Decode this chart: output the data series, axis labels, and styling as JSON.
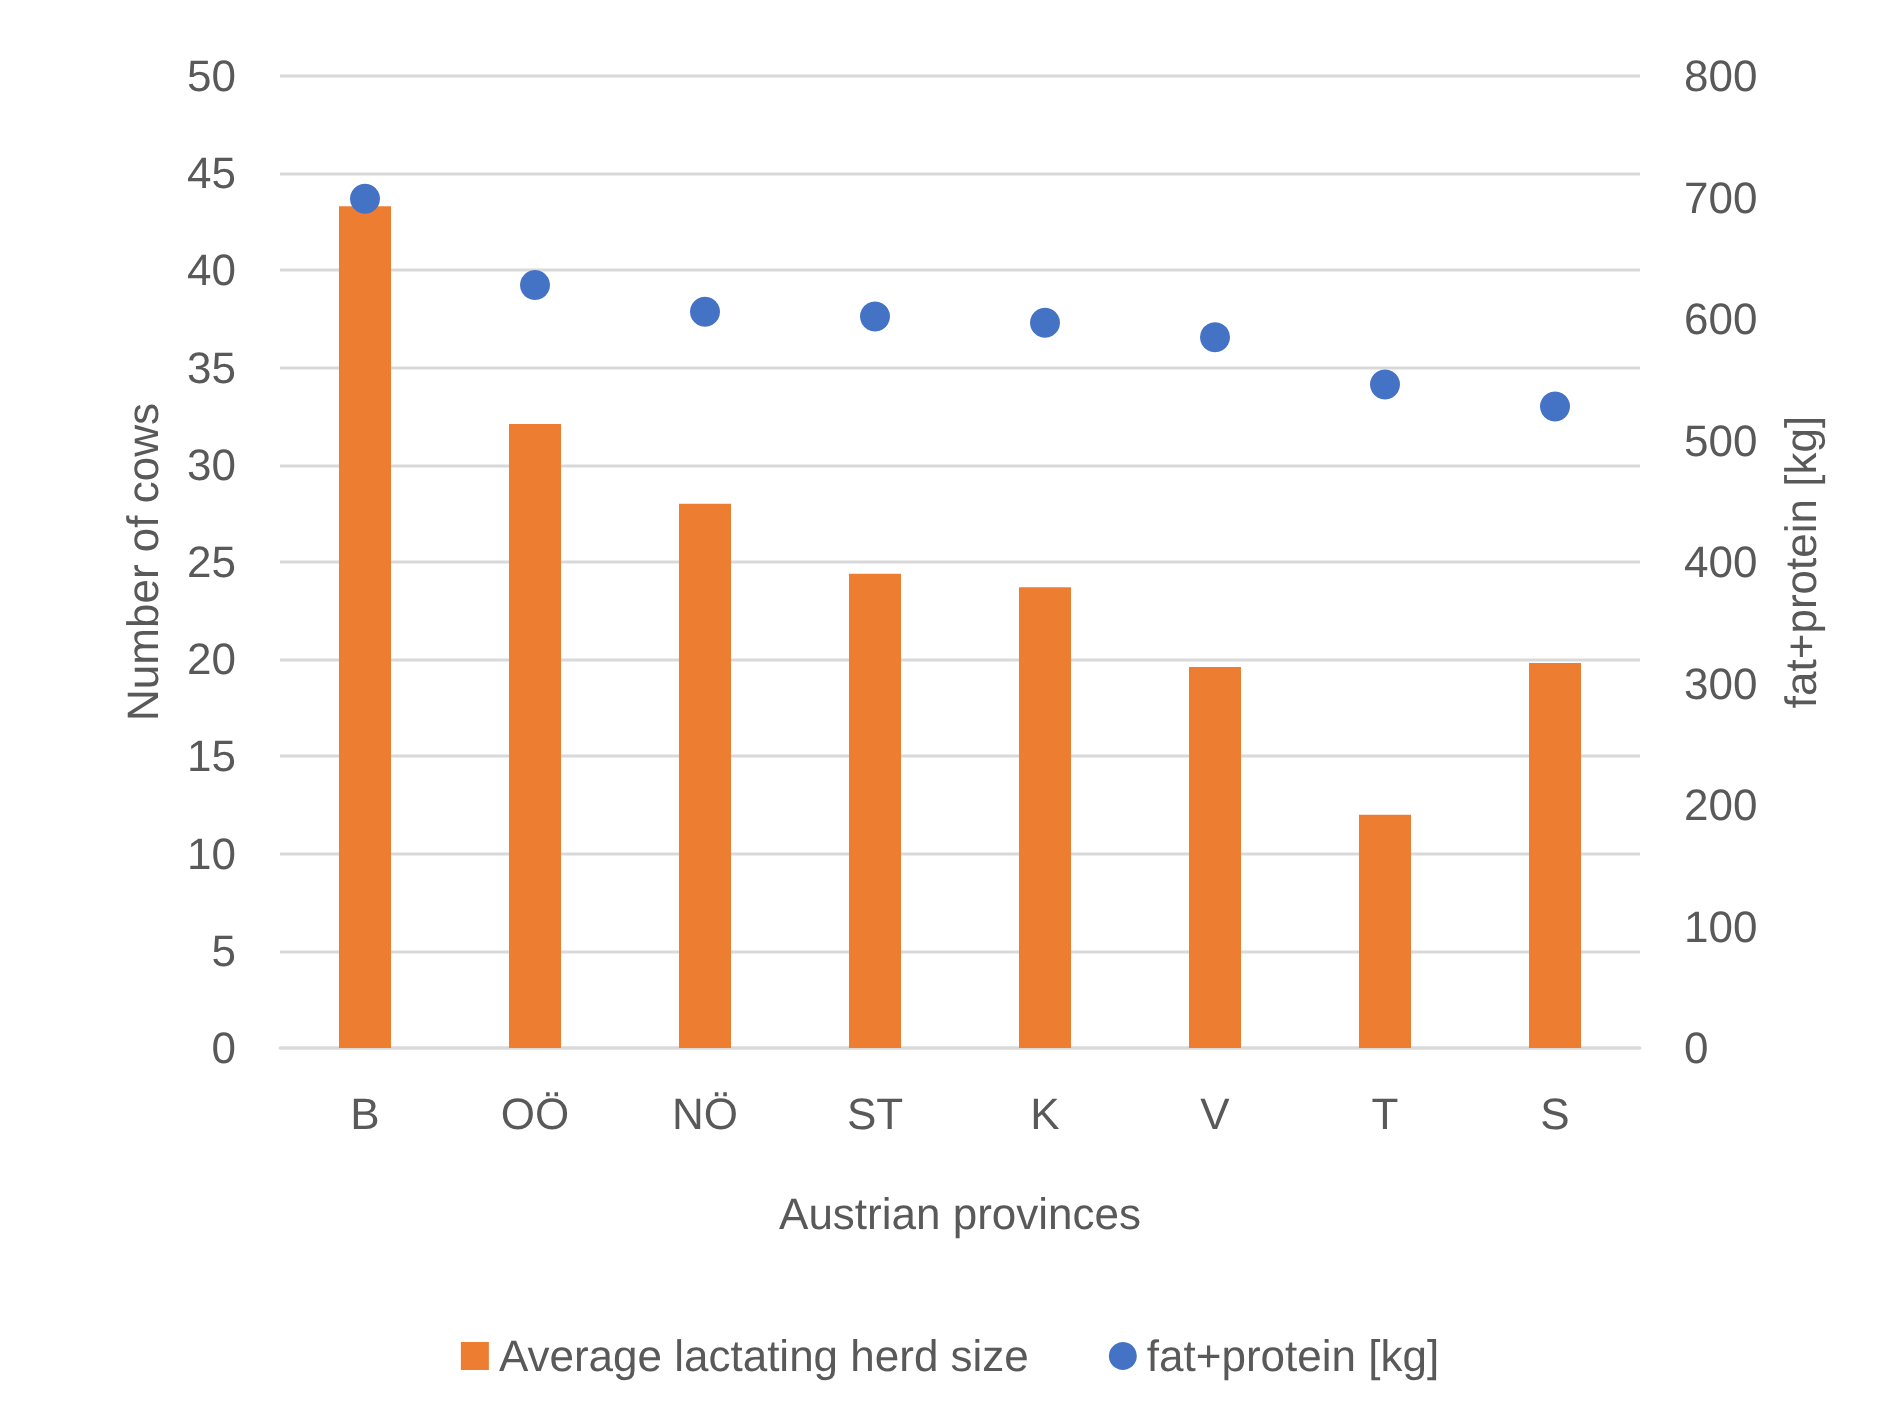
{
  "chart_data": {
    "type": "bar",
    "xlabel": "Austrian provinces",
    "ylabel": "Number of cows",
    "y2label": "fat+protein [kg]",
    "categories": [
      "B",
      "OÖ",
      "NÖ",
      "ST",
      "K",
      "V",
      "T",
      "S"
    ],
    "series": [
      {
        "name": "Average lactating herd size",
        "color": "#ed7d31",
        "values": [
          43.3,
          32.1,
          28.0,
          24.4,
          23.7,
          19.6,
          12.0,
          19.8
        ]
      },
      {
        "name": "fat+protein [kg]",
        "type": "scatter",
        "axis": "y2",
        "color": "#4472c4",
        "values": [
          699,
          628,
          606,
          602,
          597,
          585,
          546,
          528
        ]
      }
    ],
    "ylim": [
      0,
      50
    ],
    "yticks": [
      0,
      5,
      10,
      15,
      20,
      25,
      30,
      35,
      40,
      45,
      50
    ],
    "y2lim": [
      0,
      800
    ],
    "y2ticks": [
      0,
      100,
      200,
      300,
      400,
      500,
      600,
      700,
      800
    ],
    "grid": "y",
    "legend": "bottom",
    "marker": "circle"
  }
}
